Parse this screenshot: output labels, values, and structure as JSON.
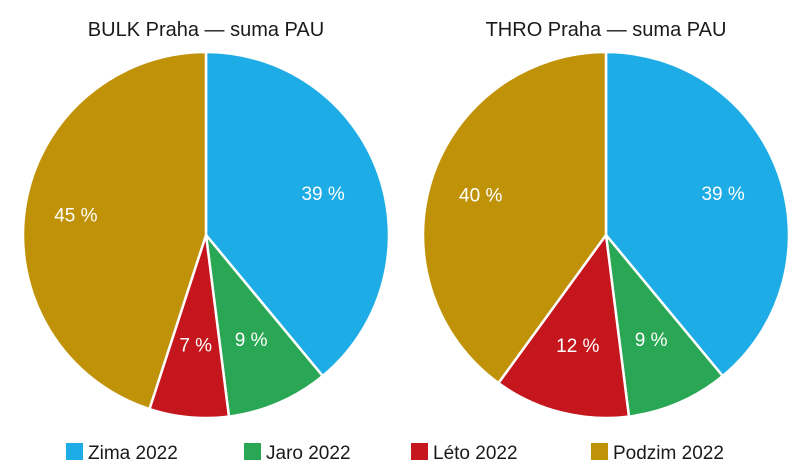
{
  "chart_data": [
    {
      "type": "pie",
      "title": "BULK Praha — suma PAU",
      "categories": [
        "Zima 2022",
        "Jaro 2022",
        "Léto 2022",
        "Podzim 2022"
      ],
      "values": [
        39,
        9,
        7,
        45
      ],
      "labels": [
        "39 %",
        "9 %",
        "7 %",
        "45 %"
      ]
    },
    {
      "type": "pie",
      "title": "THRO Praha — suma PAU",
      "categories": [
        "Zima 2022",
        "Jaro 2022",
        "Léto 2022",
        "Podzim 2022"
      ],
      "values": [
        39,
        9,
        12,
        40
      ],
      "labels": [
        "39 %",
        "9 %",
        "12 %",
        "40 %"
      ]
    }
  ],
  "legend": {
    "placement": "bottom",
    "items": [
      {
        "label": "Zima 2022",
        "color": "#1eace6"
      },
      {
        "label": "Jaro 2022",
        "color": "#2aa754"
      },
      {
        "label": "Léto 2022",
        "color": "#c4161c"
      },
      {
        "label": "Podzim 2022",
        "color": "#c09208"
      }
    ]
  }
}
